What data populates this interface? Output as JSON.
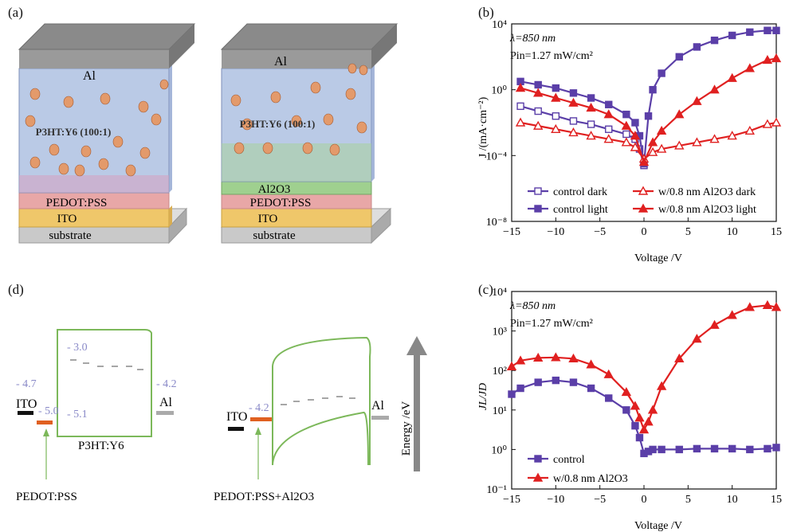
{
  "panels": {
    "a": {
      "label": "(a)",
      "device1": {
        "layers": [
          "Al",
          "P3HT:Y6 (100:1)",
          "PEDOT:PSS",
          "ITO",
          "substrate"
        ]
      },
      "device2": {
        "layers": [
          "Al",
          "P3HT:Y6 (100:1)",
          "Al2O3",
          "PEDOT:PSS",
          "ITO",
          "substrate"
        ]
      },
      "colors": {
        "al": "#8f8f8f",
        "active": "#a9bde0",
        "pedot": "#e8a7a7",
        "ito": "#efc76a",
        "substrate": "#c9c9c9",
        "al2o3": "#9fd08f",
        "particle": "#e39a6b"
      }
    },
    "b": {
      "label": "(b)",
      "annotation_lambda": "λ=850 nm",
      "annotation_pin": "Pin=1.27 mW/cm²",
      "xlabel": "Voltage /V",
      "ylabel": "J /(mA·cm⁻²)"
    },
    "c": {
      "label": "(c)",
      "annotation_lambda": "λ=850 nm",
      "annotation_pin": "Pin=1.27 mW/cm²",
      "xlabel": "Voltage /V",
      "ylabel": "JL/JD"
    },
    "d": {
      "label": "(d)",
      "left": {
        "ito": "ITO",
        "al": "Al",
        "active": "P3HT:Y6",
        "pedot": "PEDOT:PSS",
        "v_ito": "- 4.7",
        "v_pedot": "- 5.0",
        "v_lumo": "- 3.0",
        "v_homo": "- 5.1",
        "v_al": "- 4.2"
      },
      "right": {
        "ito": "ITO",
        "al": "Al",
        "pedot": "PEDOT:PSS+Al2O3",
        "v_pedot": "- 4.2"
      },
      "energy_axis": "Energy /eV"
    }
  },
  "chart_data": [
    {
      "type": "line",
      "panel": "b",
      "title": "",
      "xlabel": "Voltage /V",
      "ylabel": "J /(mA·cm⁻²)",
      "xlim": [
        -15,
        15
      ],
      "ylim_log10": [
        -8,
        4
      ],
      "xticks": [
        -15,
        -10,
        -5,
        0,
        5,
        10,
        15
      ],
      "yticks": [
        "10⁴",
        "10⁰",
        "10⁻⁴",
        "10⁻⁸"
      ],
      "legend": [
        "control dark",
        "control light",
        "w/0.8 nm Al2O3 dark",
        "w/0.8 nm Al2O3 light"
      ],
      "series": [
        {
          "name": "control dark",
          "color": "#5b3fa8",
          "marker": "square-open",
          "x": [
            -14,
            -12,
            -10,
            -8,
            -6,
            -4,
            -2,
            -1,
            -0.5,
            0,
            0.5,
            1,
            2,
            4,
            6,
            8,
            10,
            12,
            14
          ],
          "log10y": [
            -1.0,
            -1.3,
            -1.6,
            -1.9,
            -2.1,
            -2.4,
            -2.7,
            -3.0,
            -3.6,
            -4.6,
            null,
            null,
            null,
            null,
            null,
            null,
            null,
            null,
            null
          ]
        },
        {
          "name": "control light",
          "color": "#5b3fa8",
          "marker": "square-filled",
          "x": [
            -14,
            -12,
            -10,
            -8,
            -6,
            -4,
            -2,
            -1,
            -0.5,
            0,
            0.5,
            1,
            2,
            4,
            6,
            8,
            10,
            12,
            14,
            15
          ],
          "log10y": [
            0.5,
            0.3,
            0.1,
            -0.2,
            -0.5,
            -0.9,
            -1.5,
            -2.0,
            -2.8,
            -4.5,
            -1.6,
            0.0,
            1.0,
            2.0,
            2.6,
            3.0,
            3.3,
            3.5,
            3.6,
            3.6
          ]
        },
        {
          "name": "w/0.8 nm Al2O3 dark",
          "color": "#e02020",
          "marker": "triangle-open",
          "x": [
            -14,
            -12,
            -10,
            -8,
            -6,
            -4,
            -2,
            -1,
            0,
            1,
            2,
            4,
            6,
            8,
            10,
            12,
            14,
            15
          ],
          "log10y": [
            -2.0,
            -2.2,
            -2.4,
            -2.6,
            -2.8,
            -3.0,
            -3.2,
            -3.5,
            -4.2,
            -3.8,
            -3.6,
            -3.4,
            -3.2,
            -3.0,
            -2.8,
            -2.5,
            -2.1,
            -2.0
          ]
        },
        {
          "name": "w/0.8 nm Al2O3 light",
          "color": "#e02020",
          "marker": "triangle-filled",
          "x": [
            -14,
            -12,
            -10,
            -8,
            -6,
            -4,
            -2,
            -1,
            0,
            1,
            2,
            4,
            6,
            8,
            10,
            12,
            14,
            15
          ],
          "log10y": [
            0.1,
            -0.2,
            -0.5,
            -0.8,
            -1.1,
            -1.5,
            -2.2,
            -2.8,
            -4.4,
            -3.2,
            -2.5,
            -1.5,
            -0.7,
            0.0,
            0.7,
            1.3,
            1.8,
            1.9
          ]
        }
      ]
    },
    {
      "type": "line",
      "panel": "c",
      "title": "",
      "xlabel": "Voltage /V",
      "ylabel": "JL/JD",
      "xlim": [
        -15,
        15
      ],
      "ylim_log10": [
        -1,
        4
      ],
      "xticks": [
        -15,
        -10,
        -5,
        0,
        5,
        10,
        15
      ],
      "yticks": [
        "10⁴",
        "10³",
        "10²",
        "10¹",
        "10⁰",
        "10⁻¹"
      ],
      "legend": [
        "control",
        "w/0.8 nm Al2O3"
      ],
      "series": [
        {
          "name": "control",
          "color": "#5b3fa8",
          "marker": "square-filled",
          "x": [
            -15,
            -14,
            -12,
            -10,
            -8,
            -6,
            -4,
            -2,
            -1,
            -0.5,
            0,
            0.5,
            1,
            2,
            4,
            6,
            8,
            10,
            12,
            14,
            15
          ],
          "log10y": [
            1.4,
            1.55,
            1.7,
            1.75,
            1.7,
            1.55,
            1.3,
            1.0,
            0.6,
            0.3,
            -0.1,
            -0.05,
            0.0,
            0.0,
            0.0,
            0.02,
            0.02,
            0.02,
            0.0,
            0.02,
            0.05
          ]
        },
        {
          "name": "w/0.8 nm Al2O3",
          "color": "#e02020",
          "marker": "triangle-filled",
          "x": [
            -15,
            -14,
            -12,
            -10,
            -8,
            -6,
            -4,
            -2,
            -1,
            -0.5,
            0,
            0.5,
            1,
            2,
            4,
            6,
            8,
            10,
            12,
            14,
            15
          ],
          "log10y": [
            2.1,
            2.25,
            2.32,
            2.33,
            2.3,
            2.15,
            1.9,
            1.45,
            1.1,
            0.8,
            0.5,
            0.7,
            1.0,
            1.6,
            2.3,
            2.8,
            3.15,
            3.4,
            3.6,
            3.65,
            3.6
          ]
        }
      ]
    }
  ]
}
